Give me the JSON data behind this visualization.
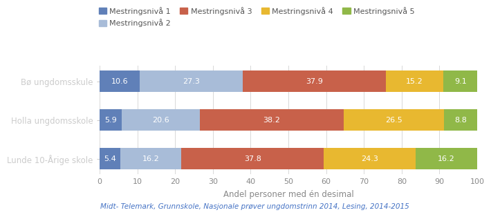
{
  "schools": [
    "Bø ungdomsskule",
    "Holla ungdomsskole",
    "Lunde 10-Årige skole"
  ],
  "levels": [
    "Mestringsnivå 1",
    "Mestringsnivå 2",
    "Mestringsnivå 3",
    "Mestringsnivå 4",
    "Mestringsnivå 5"
  ],
  "colors": [
    "#6080b8",
    "#a8bcd8",
    "#c8614a",
    "#e8b830",
    "#90b848"
  ],
  "values": [
    [
      10.6,
      27.3,
      37.9,
      15.2,
      9.1
    ],
    [
      5.9,
      20.6,
      38.2,
      26.5,
      8.8
    ],
    [
      5.4,
      16.2,
      37.8,
      24.3,
      16.2
    ]
  ],
  "xlabel": "Andel personer med én desimal",
  "xlim": [
    0,
    100
  ],
  "xticks": [
    0,
    10,
    20,
    30,
    40,
    50,
    60,
    70,
    80,
    90,
    100
  ],
  "footnote": "Midt- Telemark, Grunnskole, Nasjonale prøver ungdomstrinn 2014, Lesing, 2014-2015",
  "footnote_color": "#4472c4",
  "background_color": "#ffffff",
  "bar_height": 0.55,
  "label_fontsize": 8,
  "xlabel_fontsize": 8.5,
  "legend_fontsize": 8,
  "footnote_fontsize": 7.5,
  "ytick_fontsize": 8.5,
  "xtick_fontsize": 8
}
